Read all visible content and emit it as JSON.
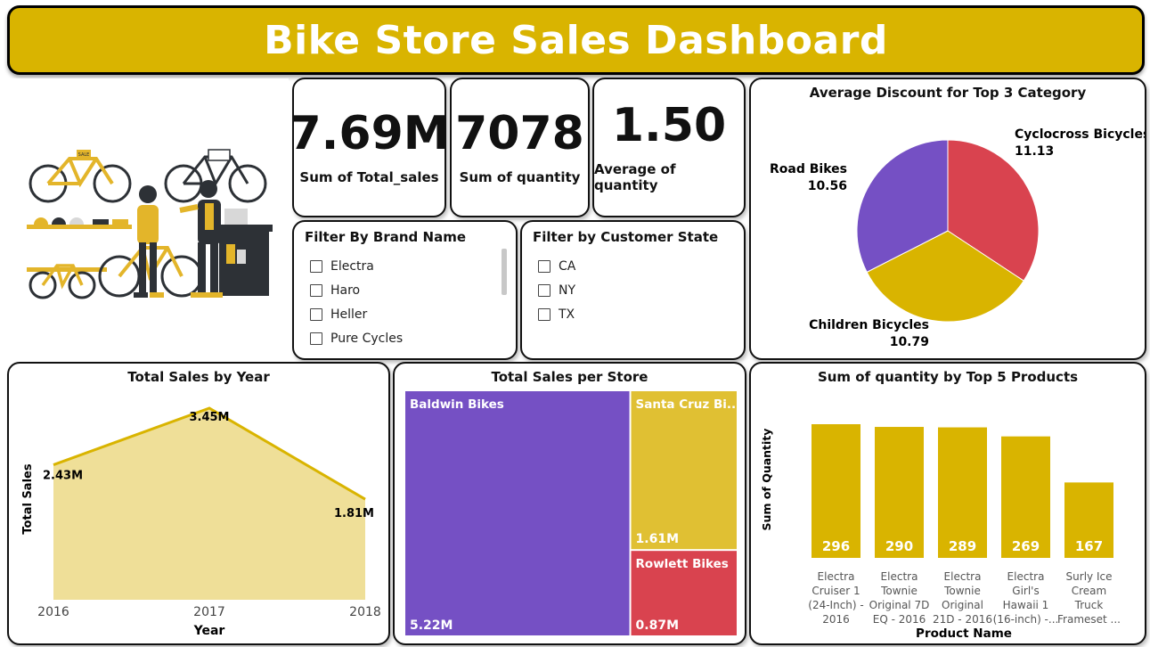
{
  "title": "Bike Store Sales Dashboard",
  "colors": {
    "gold": "#d9b400",
    "purple": "#7550c4",
    "red": "#d9434f",
    "yellow": "#e0c033",
    "area": "#efdf98"
  },
  "kpis": [
    {
      "value": "7.69M",
      "label": "Sum of Total_sales"
    },
    {
      "value": "7078",
      "label": "Sum of quantity"
    },
    {
      "value": "1.50",
      "label": "Average of quantity"
    }
  ],
  "brand_filter": {
    "title": "Filter By Brand Name",
    "items": [
      "Electra",
      "Haro",
      "Heller",
      "Pure Cycles"
    ]
  },
  "state_filter": {
    "title": "Filter by Customer State",
    "items": [
      "CA",
      "NY",
      "TX"
    ]
  },
  "illustration": {
    "sign_label": "SALE",
    "subject": "bike-shop-illustration"
  },
  "chart_data": [
    {
      "type": "pie",
      "title": "Average Discount for Top 3 Category",
      "slices": [
        {
          "label": "Cyclocross Bicycles",
          "value": 11.13,
          "value_label": "11.13",
          "color": "#d9434f"
        },
        {
          "label": "Children Bicycles",
          "value": 10.79,
          "value_label": "10.79",
          "color": "#d9b400"
        },
        {
          "label": "Road Bikes",
          "value": 10.56,
          "value_label": "10.56",
          "color": "#7550c4"
        }
      ]
    },
    {
      "type": "area",
      "title": "Total Sales by Year",
      "xlabel": "Year",
      "ylabel": "Total Sales",
      "x": [
        "2016",
        "2017",
        "2018"
      ],
      "values": [
        2.43,
        3.45,
        1.81
      ],
      "value_labels": [
        "2.43M",
        "3.45M",
        "1.81M"
      ],
      "ylim": [
        0,
        3.45
      ]
    },
    {
      "type": "treemap",
      "title": "Total Sales per Store",
      "items": [
        {
          "label": "Baldwin Bikes",
          "value": 5.22,
          "value_label": "5.22M",
          "color": "#7550c4"
        },
        {
          "label": "Santa Cruz Bi...",
          "value": 1.61,
          "value_label": "1.61M",
          "color": "#e0c033"
        },
        {
          "label": "Rowlett Bikes",
          "value": 0.87,
          "value_label": "0.87M",
          "color": "#d9434f"
        }
      ]
    },
    {
      "type": "bar",
      "title": "Sum of quantity by Top 5 Products",
      "xlabel": "Product Name",
      "ylabel": "Sum of Quantity",
      "categories": [
        [
          "Electra",
          "Cruiser 1",
          "(24-Inch) -",
          "2016"
        ],
        [
          "Electra",
          "Townie",
          "Original 7D",
          "EQ - 2016"
        ],
        [
          "Electra",
          "Townie",
          "Original",
          "21D - 2016"
        ],
        [
          "Electra",
          "Girl's",
          "Hawaii 1",
          "(16-inch) -..."
        ],
        [
          "Surly Ice",
          "Cream",
          "Truck",
          "Frameset ..."
        ]
      ],
      "values": [
        296,
        290,
        289,
        269,
        167
      ],
      "ylim": [
        0,
        296
      ]
    }
  ]
}
